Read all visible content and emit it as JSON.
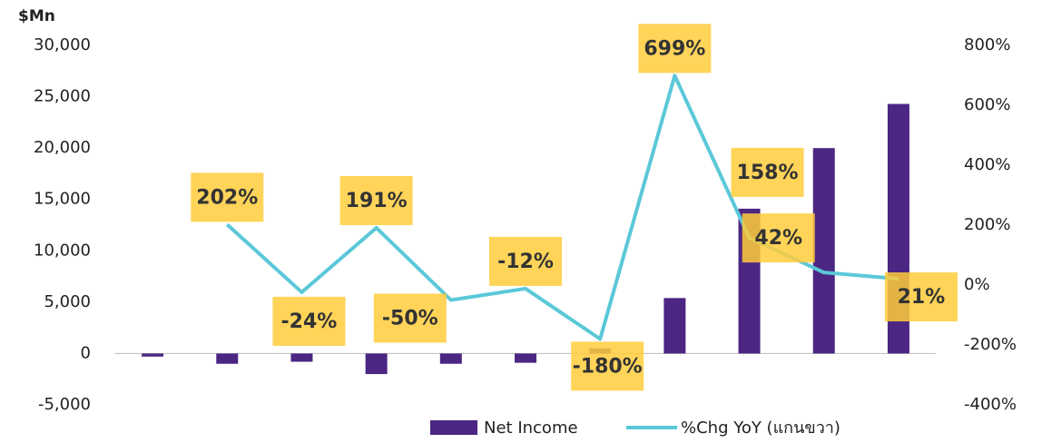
{
  "chart_data": {
    "type": "bar",
    "title": "$Mn",
    "categories": [
      null,
      null,
      null,
      null,
      null,
      null,
      null,
      null,
      null,
      null,
      null
    ],
    "series": [
      {
        "name": "Net Income",
        "type": "bar",
        "color": "#4b2683",
        "values": [
          -300,
          -1000,
          -800,
          -2000,
          -1000,
          -900,
          500,
          5400,
          14100,
          20000,
          24300
        ]
      },
      {
        "name": "%Chg YoY (แกนขวา)",
        "type": "line",
        "axis": "y2",
        "color": "#5bc8d8",
        "values": [
          null,
          202,
          -24,
          191,
          -50,
          -12,
          -180,
          699,
          158,
          42,
          21
        ],
        "value_labels": [
          null,
          "202%",
          "-24%",
          "191%",
          "-50%",
          "-12%",
          "-180%",
          "699%",
          "158%",
          "42%",
          "21%"
        ]
      }
    ],
    "ylim": [
      -5000,
      30000
    ],
    "yticks": [
      {
        "value": -5000,
        "label": "-5,000"
      },
      0,
      {
        "value": 5000,
        "label": "5,000"
      },
      {
        "value": 10000,
        "label": "10,000"
      },
      {
        "value": 15000,
        "label": "15,000"
      },
      {
        "value": 20000,
        "label": "20,000"
      },
      {
        "value": 25000,
        "label": "25,000"
      },
      {
        "value": 30000,
        "label": "30,000"
      }
    ],
    "y2lim": [
      -400,
      800
    ],
    "y2ticks": [
      {
        "value": -400,
        "label": "-400%"
      },
      {
        "value": -200,
        "label": "-200%"
      },
      {
        "value": 0,
        "label": "0%"
      },
      {
        "value": 200,
        "label": "200%"
      },
      {
        "value": 400,
        "label": "400%"
      },
      {
        "value": 600,
        "label": "600%"
      },
      {
        "value": 800,
        "label": "800%"
      }
    ],
    "grid": false,
    "legend": "bottom"
  }
}
